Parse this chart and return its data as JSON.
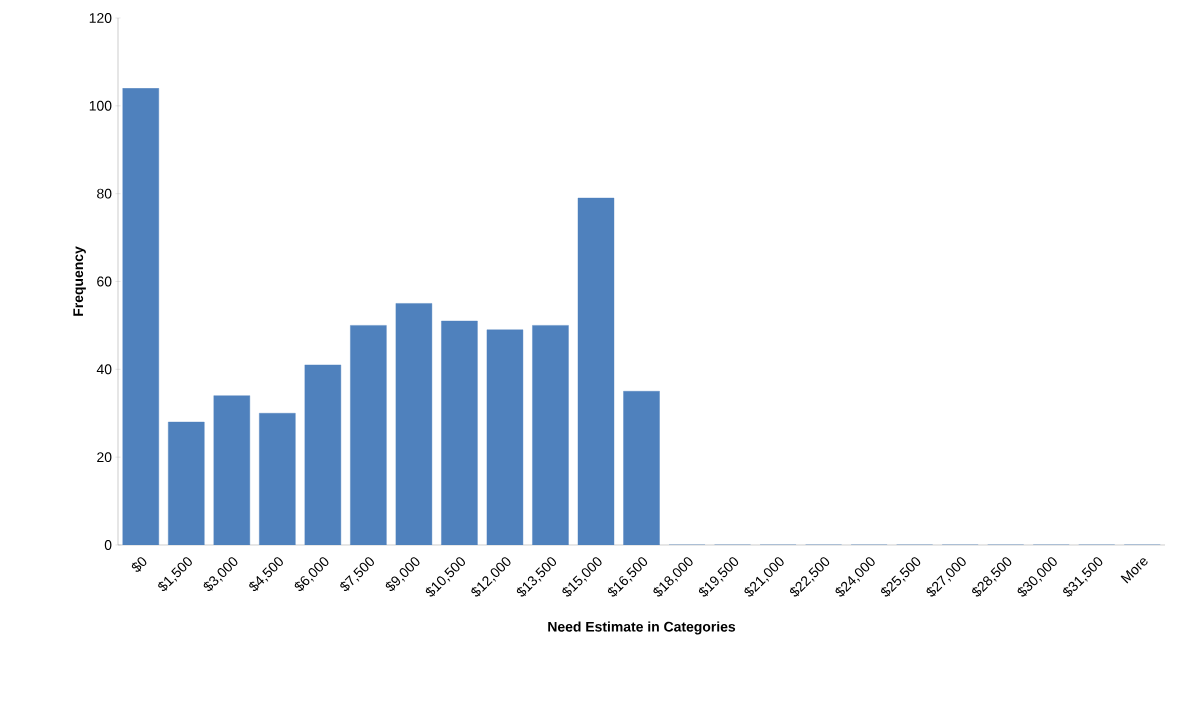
{
  "chart_data": {
    "type": "bar",
    "xlabel": "Need Estimate in Categories",
    "ylabel": "Frequency",
    "categories": [
      "$0",
      "$1,500",
      "$3,000",
      "$4,500",
      "$6,000",
      "$7,500",
      "$9,000",
      "$10,500",
      "$12,000",
      "$13,500",
      "$15,000",
      "$16,500",
      "$18,000",
      "$19,500",
      "$21,000",
      "$22,500",
      "$24,000",
      "$25,500",
      "$27,000",
      "$28,500",
      "$30,000",
      "$31,500",
      "More"
    ],
    "values": [
      104,
      28,
      34,
      30,
      41,
      50,
      55,
      51,
      49,
      50,
      79,
      35,
      0,
      0,
      0,
      0,
      0,
      0,
      0,
      0,
      0,
      0,
      0
    ],
    "color": "#4f81bd",
    "ylim": [
      0,
      120
    ],
    "yticks": [
      0,
      20,
      40,
      60,
      80,
      100,
      120
    ]
  }
}
